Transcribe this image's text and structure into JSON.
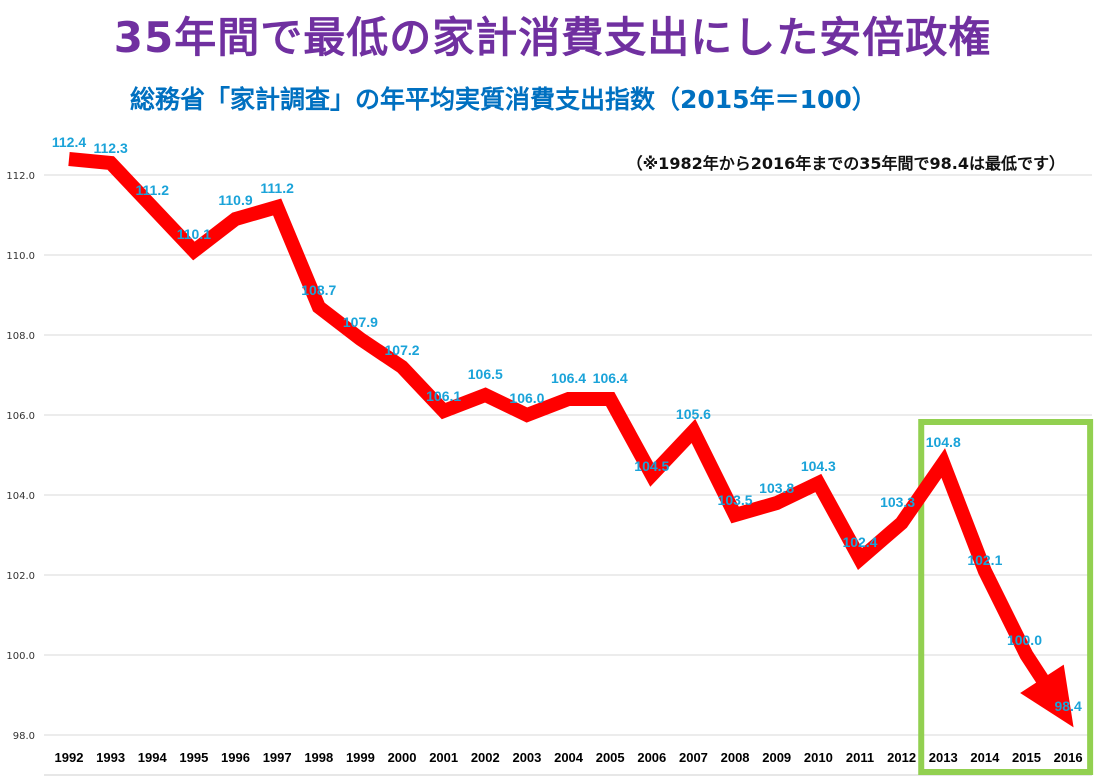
{
  "chart_data": {
    "type": "line",
    "title": "35年間で最低の家計消費支出にした安倍政権",
    "subtitle": "総務省「家計調査」の年平均実質消費支出指数（2015年＝100）",
    "note": "（※1982年から2016年までの35年間で98.4は最低です）",
    "categories": [
      "1992",
      "1993",
      "1994",
      "1995",
      "1996",
      "1997",
      "1998",
      "1999",
      "2000",
      "2001",
      "2002",
      "2003",
      "2004",
      "2005",
      "2006",
      "2007",
      "2008",
      "2009",
      "2010",
      "2011",
      "2012",
      "2013",
      "2014",
      "2015",
      "2016"
    ],
    "series": [
      {
        "values": [
          112.4,
          112.3,
          111.2,
          110.1,
          110.9,
          111.2,
          108.7,
          107.9,
          107.2,
          106.1,
          106.5,
          106.0,
          106.4,
          106.4,
          104.5,
          105.6,
          103.5,
          103.8,
          104.3,
          102.4,
          103.3,
          104.8,
          102.1,
          100.0,
          98.4
        ]
      }
    ],
    "data_labels": [
      "112.4",
      "112.3",
      "111.2",
      "110.1",
      "110.9",
      "111.2",
      "108.7",
      "107.9",
      "107.2",
      "106.1",
      "106.5",
      "106.0",
      "106.4",
      "106.4",
      "104.5",
      "105.6",
      "103.5",
      "103.8",
      "104.3",
      "102.4",
      "103.3",
      "104.8",
      "102.1",
      "100.0",
      "98.4"
    ],
    "yticks": [
      "98.0",
      "100.0",
      "102.0",
      "104.0",
      "106.0",
      "108.0",
      "110.0",
      "112.0"
    ],
    "ylim": [
      98,
      112.5
    ],
    "grid": true,
    "highlight_range": [
      "2013",
      "2016"
    ],
    "colors": {
      "line": "#ff0000",
      "highlight_box": "#92d050",
      "labels": "#1aa3d9",
      "title": "#7030a0",
      "subtitle": "#0070c0",
      "grid": "#d9d9d9"
    }
  }
}
